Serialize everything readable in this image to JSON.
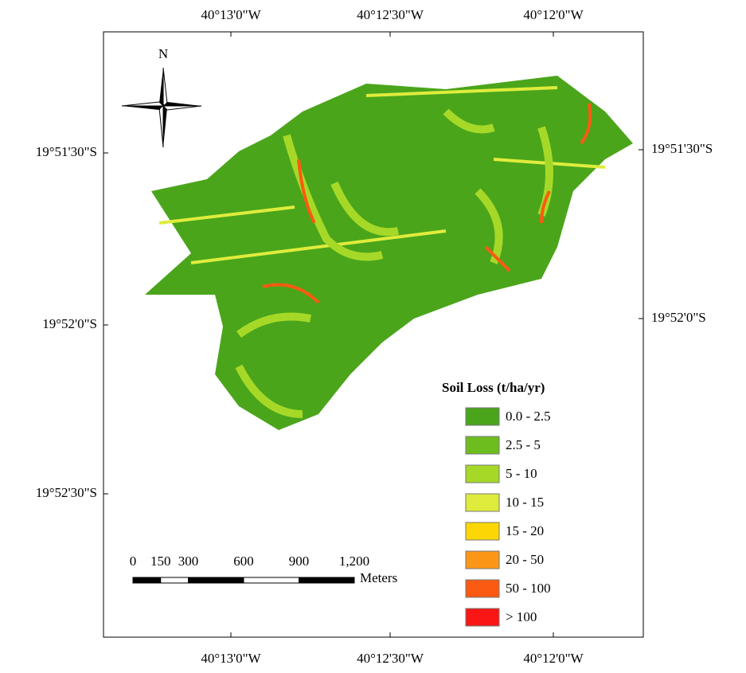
{
  "north": "N",
  "top_labels": [
    "40°13'0\"W",
    "40°12'30\"W",
    "40°12'0\"W"
  ],
  "bottom_labels": [
    "40°13'0\"W",
    "40°12'30\"W",
    "40°12'0\"W"
  ],
  "left_labels": [
    "19°51'30\"S",
    "19°52'0\"S",
    "19°52'30\"S"
  ],
  "right_labels": [
    "19°51'30\"S",
    "19°52'0\"S"
  ],
  "legend": {
    "title": "Soil Loss (t/ha/yr)",
    "items": [
      {
        "label": "0.0 - 2.5",
        "color": "#4aa51b"
      },
      {
        "label": "2.5 - 5",
        "color": "#6dbd1e"
      },
      {
        "label": "5 - 10",
        "color": "#a6d927"
      },
      {
        "label": "10 - 15",
        "color": "#dfec3c"
      },
      {
        "label": "15 - 20",
        "color": "#fcd705"
      },
      {
        "label": "20 - 50",
        "color": "#fb9616"
      },
      {
        "label": "50 - 100",
        "color": "#fb5a12"
      },
      {
        "label": "> 100",
        "color": "#fb1616"
      }
    ]
  },
  "scale": {
    "unit": "Meters",
    "ticks": [
      0,
      150,
      300,
      600,
      900,
      {
        "value": 1200,
        "label": "1,200"
      }
    ]
  }
}
